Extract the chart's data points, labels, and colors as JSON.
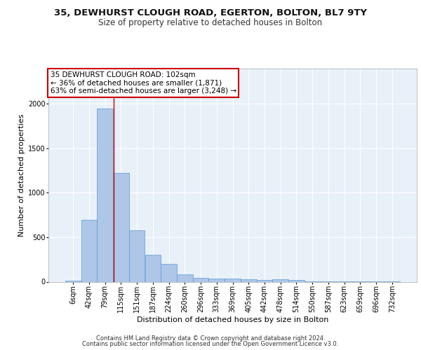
{
  "title1": "35, DEWHURST CLOUGH ROAD, EGERTON, BOLTON, BL7 9TY",
  "title2": "Size of property relative to detached houses in Bolton",
  "xlabel": "Distribution of detached houses by size in Bolton",
  "ylabel": "Number of detached properties",
  "bin_labels": [
    "6sqm",
    "42sqm",
    "79sqm",
    "115sqm",
    "151sqm",
    "187sqm",
    "224sqm",
    "260sqm",
    "296sqm",
    "333sqm",
    "369sqm",
    "405sqm",
    "442sqm",
    "478sqm",
    "514sqm",
    "550sqm",
    "587sqm",
    "623sqm",
    "659sqm",
    "696sqm",
    "732sqm"
  ],
  "bar_heights": [
    15,
    700,
    1950,
    1220,
    575,
    305,
    200,
    80,
    45,
    35,
    35,
    30,
    20,
    25,
    20,
    5,
    2,
    2,
    2,
    2,
    2
  ],
  "bar_color": "#aec6e8",
  "bar_edge_color": "#5b9bd5",
  "bg_color": "#e8f0f8",
  "grid_color": "#ffffff",
  "annotation_text": "35 DEWHURST CLOUGH ROAD: 102sqm\n← 36% of detached houses are smaller (1,871)\n63% of semi-detached houses are larger (3,248) →",
  "annotation_box_color": "#ffffff",
  "annotation_box_edge_color": "#cc0000",
  "red_line_x": 2.55,
  "footer_line1": "Contains HM Land Registry data © Crown copyright and database right 2024.",
  "footer_line2": "Contains public sector information licensed under the Open Government Licence v3.0.",
  "ylim": [
    0,
    2400
  ],
  "title1_fontsize": 9.5,
  "title2_fontsize": 8.5,
  "xlabel_fontsize": 8,
  "ylabel_fontsize": 8,
  "tick_fontsize": 7,
  "annotation_fontsize": 7.5,
  "footer_fontsize": 6
}
